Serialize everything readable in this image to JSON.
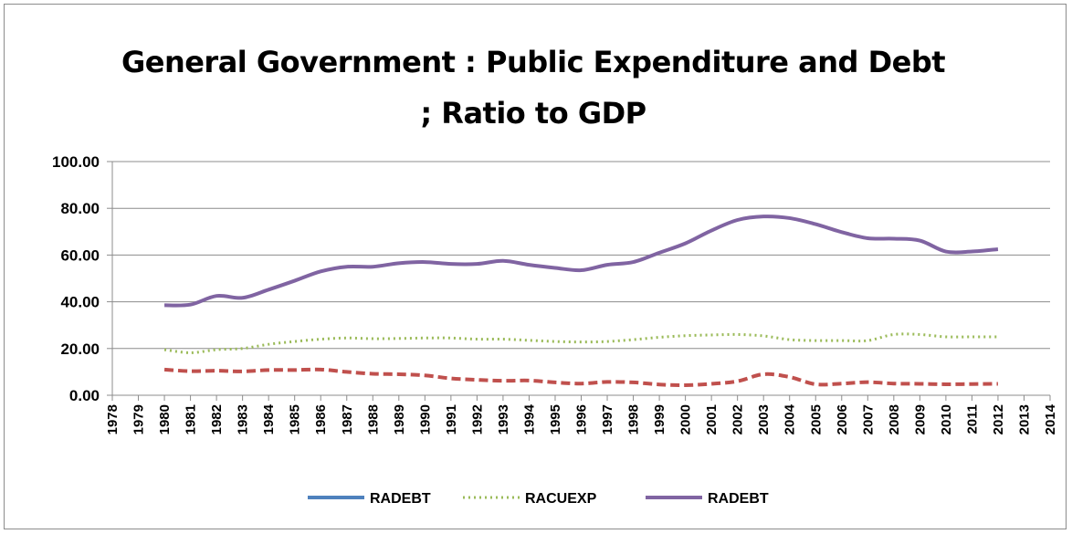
{
  "chart_data": {
    "type": "line",
    "title_line1": "General Government : Public Expenditure and Debt",
    "title_line2": "; Ratio to GDP",
    "xlabel": "",
    "ylabel": "",
    "ylim": [
      0,
      100
    ],
    "yticks": [
      "0.00",
      "20.00",
      "40.00",
      "60.00",
      "80.00",
      "100.00"
    ],
    "ytick_values": [
      0,
      20,
      40,
      60,
      80,
      100
    ],
    "categories": [
      "1978",
      "1979",
      "1980",
      "1981",
      "1982",
      "1983",
      "1984",
      "1985",
      "1986",
      "1987",
      "1988",
      "1989",
      "1990",
      "1991",
      "1992",
      "1993",
      "1994",
      "1995",
      "1996",
      "1997",
      "1998",
      "1999",
      "2000",
      "2001",
      "2002",
      "2003",
      "2004",
      "2005",
      "2006",
      "2007",
      "2008",
      "2009",
      "2010",
      "2011",
      "2012",
      "2013",
      "2014"
    ],
    "grid": "horizontal",
    "legend_position": "bottom",
    "series": [
      {
        "name": "RADEBT",
        "color": "#4f81bd",
        "dash": "solid",
        "in_legend": true,
        "x": [],
        "values": []
      },
      {
        "name": "",
        "color": "#c0504d",
        "dash": "dashed",
        "in_legend": false,
        "x": [
          "1980",
          "1981",
          "1982",
          "1983",
          "1984",
          "1985",
          "1986",
          "1987",
          "1988",
          "1989",
          "1990",
          "1991",
          "1992",
          "1993",
          "1994",
          "1995",
          "1996",
          "1997",
          "1998",
          "1999",
          "2000",
          "2001",
          "2002",
          "2003",
          "2004",
          "2005",
          "2006",
          "2007",
          "2008",
          "2009",
          "2010",
          "2011",
          "2012"
        ],
        "values": [
          11.0,
          10.3,
          10.5,
          10.2,
          10.8,
          10.8,
          11.0,
          10.0,
          9.2,
          9.0,
          8.5,
          7.2,
          6.6,
          6.2,
          6.3,
          5.5,
          5.0,
          5.7,
          5.5,
          4.6,
          4.3,
          4.9,
          6.0,
          9.0,
          7.8,
          4.7,
          5.0,
          5.6,
          5.0,
          4.9,
          4.7,
          4.8,
          4.9
        ]
      },
      {
        "name": "RACUEXP",
        "color": "#9bbb59",
        "dash": "dotted",
        "in_legend": true,
        "x": [
          "1980",
          "1981",
          "1982",
          "1983",
          "1984",
          "1985",
          "1986",
          "1987",
          "1988",
          "1989",
          "1990",
          "1991",
          "1992",
          "1993",
          "1994",
          "1995",
          "1996",
          "1997",
          "1998",
          "1999",
          "2000",
          "2001",
          "2002",
          "2003",
          "2004",
          "2005",
          "2006",
          "2007",
          "2008",
          "2009",
          "2010",
          "2011",
          "2012"
        ],
        "values": [
          19.5,
          18.2,
          19.5,
          20.0,
          21.8,
          23.0,
          24.0,
          24.5,
          24.2,
          24.3,
          24.5,
          24.5,
          24.0,
          24.0,
          23.5,
          23.0,
          22.8,
          23.0,
          23.8,
          24.8,
          25.5,
          25.8,
          26.0,
          25.4,
          23.8,
          23.4,
          23.4,
          23.4,
          26.0,
          26.0,
          25.0,
          25.0,
          25.0
        ]
      },
      {
        "name": "RADEBT",
        "color": "#8064a2",
        "dash": "solid",
        "in_legend": true,
        "x": [
          "1980",
          "1981",
          "1982",
          "1983",
          "1984",
          "1985",
          "1986",
          "1987",
          "1988",
          "1989",
          "1990",
          "1991",
          "1992",
          "1993",
          "1994",
          "1995",
          "1996",
          "1997",
          "1998",
          "1999",
          "2000",
          "2001",
          "2002",
          "2003",
          "2004",
          "2005",
          "2006",
          "2007",
          "2008",
          "2009",
          "2010",
          "2011",
          "2012"
        ],
        "values": [
          38.5,
          38.8,
          42.5,
          41.7,
          45.2,
          49.0,
          53.0,
          55.0,
          55.0,
          56.5,
          57.0,
          56.2,
          56.2,
          57.5,
          55.8,
          54.5,
          53.5,
          55.8,
          57.0,
          61.0,
          65.0,
          70.5,
          75.0,
          76.5,
          75.8,
          73.2,
          69.8,
          67.2,
          67.0,
          66.2,
          61.5,
          61.5,
          62.5
        ]
      }
    ]
  }
}
